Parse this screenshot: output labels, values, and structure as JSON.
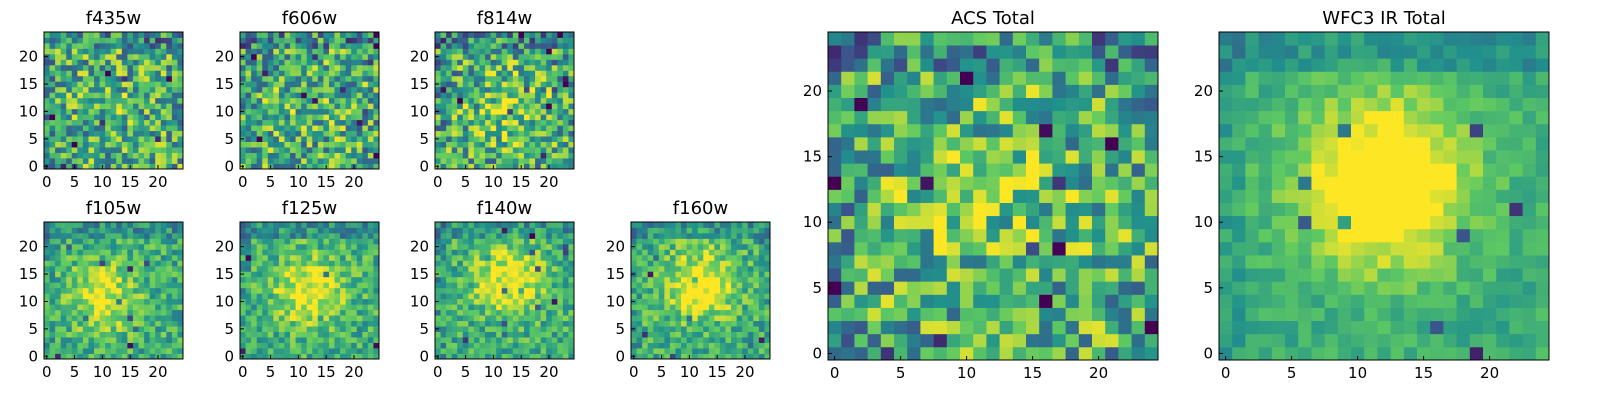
{
  "figure": {
    "colormap": "viridis",
    "colormap_stops": [
      "#440154",
      "#3b528b",
      "#21918c",
      "#5ec962",
      "#fde725"
    ]
  },
  "chart_data": [
    {
      "type": "heatmap",
      "title": "f435w",
      "grid_size": 25,
      "xticks": [
        0,
        5,
        10,
        15,
        20
      ],
      "yticks": [
        0,
        5,
        10,
        15,
        20
      ],
      "xlim": [
        0,
        24
      ],
      "ylim": [
        0,
        24
      ],
      "noise_level": "high",
      "center": [
        12,
        12
      ],
      "peak_strength": 0.05
    },
    {
      "type": "heatmap",
      "title": "f606w",
      "grid_size": 25,
      "xticks": [
        0,
        5,
        10,
        15,
        20
      ],
      "yticks": [
        0,
        5,
        10,
        15,
        20
      ],
      "xlim": [
        0,
        24
      ],
      "ylim": [
        0,
        24
      ],
      "noise_level": "high",
      "center": [
        12,
        12
      ],
      "peak_strength": 0.08
    },
    {
      "type": "heatmap",
      "title": "f814w",
      "grid_size": 25,
      "xticks": [
        0,
        5,
        10,
        15,
        20
      ],
      "yticks": [
        0,
        5,
        10,
        15,
        20
      ],
      "xlim": [
        0,
        24
      ],
      "ylim": [
        0,
        24
      ],
      "noise_level": "high",
      "center": [
        13,
        11
      ],
      "peak_strength": 0.18
    },
    {
      "type": "heatmap",
      "title": "f105w",
      "grid_size": 25,
      "xticks": [
        0,
        5,
        10,
        15,
        20
      ],
      "yticks": [
        0,
        5,
        10,
        15,
        20
      ],
      "xlim": [
        0,
        24
      ],
      "ylim": [
        0,
        24
      ],
      "noise_level": "medium",
      "center": [
        10,
        11
      ],
      "peak_strength": 0.35
    },
    {
      "type": "heatmap",
      "title": "f125w",
      "grid_size": 25,
      "xticks": [
        0,
        5,
        10,
        15,
        20
      ],
      "yticks": [
        0,
        5,
        10,
        15,
        20
      ],
      "xlim": [
        0,
        24
      ],
      "ylim": [
        0,
        24
      ],
      "noise_level": "medium",
      "center": [
        12,
        12
      ],
      "peak_strength": 0.4
    },
    {
      "type": "heatmap",
      "title": "f140w",
      "grid_size": 25,
      "xticks": [
        0,
        5,
        10,
        15,
        20
      ],
      "yticks": [
        0,
        5,
        10,
        15,
        20
      ],
      "xlim": [
        0,
        24
      ],
      "ylim": [
        0,
        24
      ],
      "noise_level": "medium",
      "center": [
        13,
        14
      ],
      "peak_strength": 0.4
    },
    {
      "type": "heatmap",
      "title": "f160w",
      "grid_size": 25,
      "xticks": [
        0,
        5,
        10,
        15,
        20
      ],
      "yticks": [
        0,
        5,
        10,
        15,
        20
      ],
      "xlim": [
        0,
        24
      ],
      "ylim": [
        0,
        24
      ],
      "noise_level": "medium",
      "center": [
        12,
        13
      ],
      "peak_strength": 0.45
    },
    {
      "type": "heatmap",
      "title": "ACS Total",
      "grid_size": 25,
      "xticks": [
        0,
        5,
        10,
        15,
        20
      ],
      "yticks": [
        0,
        5,
        10,
        15,
        20
      ],
      "xlim": [
        0,
        24
      ],
      "ylim": [
        0,
        24
      ],
      "noise_level": "high",
      "center": [
        12,
        12
      ],
      "peak_strength": 0.15
    },
    {
      "type": "heatmap",
      "title": "WFC3 IR Total",
      "grid_size": 25,
      "xticks": [
        0,
        5,
        10,
        15,
        20
      ],
      "yticks": [
        0,
        5,
        10,
        15,
        20
      ],
      "xlim": [
        0,
        24
      ],
      "ylim": [
        0,
        24
      ],
      "noise_level": "low",
      "center": [
        12,
        13
      ],
      "peak_strength": 0.6
    }
  ]
}
